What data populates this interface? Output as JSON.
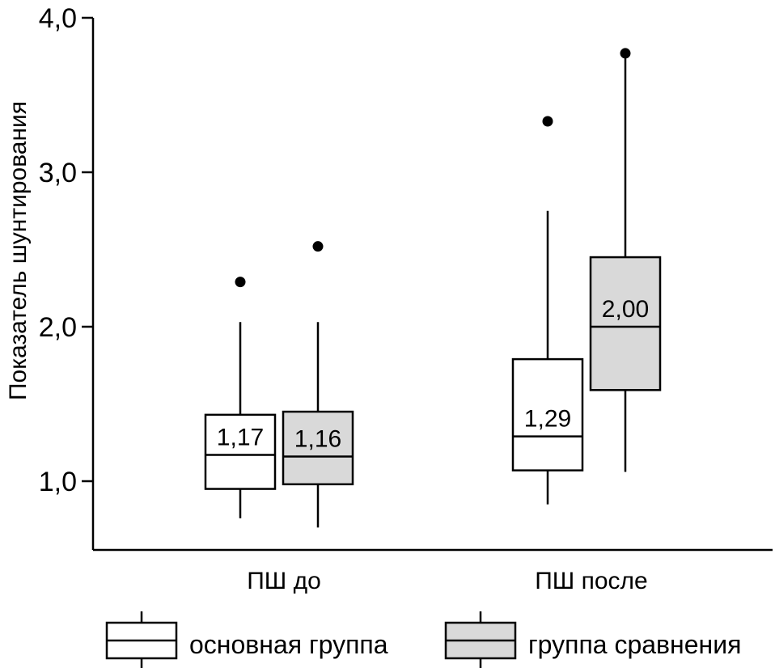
{
  "chart_data": {
    "type": "box",
    "title": "",
    "xlabel": "",
    "ylabel": "Показатель шунтирования",
    "ylim": [
      0.6,
      4.0
    ],
    "yticks": [
      1.0,
      2.0,
      3.0,
      4.0
    ],
    "ytick_labels": [
      "1,0",
      "2,0",
      "3,0",
      "4,0"
    ],
    "grid": false,
    "categories": [
      "ПШ до",
      "ПШ после"
    ],
    "series": [
      {
        "name": "основная группа",
        "fill": "#ffffff",
        "boxes": [
          {
            "whisker_low": 0.76,
            "q1": 0.95,
            "median": 1.17,
            "q3": 1.43,
            "whisker_high": 2.03,
            "outliers": [
              2.29
            ],
            "median_label": "1,17"
          },
          {
            "whisker_low": 0.85,
            "q1": 1.07,
            "median": 1.29,
            "q3": 1.79,
            "whisker_high": 2.75,
            "outliers": [
              3.33
            ],
            "median_label": "1,29"
          }
        ]
      },
      {
        "name": "группа сравнения",
        "fill": "#d9d9d9",
        "boxes": [
          {
            "whisker_low": 0.7,
            "q1": 0.98,
            "median": 1.16,
            "q3": 1.45,
            "whisker_high": 2.03,
            "outliers": [
              2.52
            ],
            "median_label": "1,16"
          },
          {
            "whisker_low": 1.06,
            "q1": 1.59,
            "median": 2.0,
            "q3": 2.45,
            "whisker_high": 3.75,
            "outliers": [
              3.77
            ],
            "median_label": "2,00"
          }
        ]
      }
    ],
    "legend": {
      "placement": "bottom",
      "entries": [
        "основная группа",
        "группа сравнения"
      ]
    }
  }
}
